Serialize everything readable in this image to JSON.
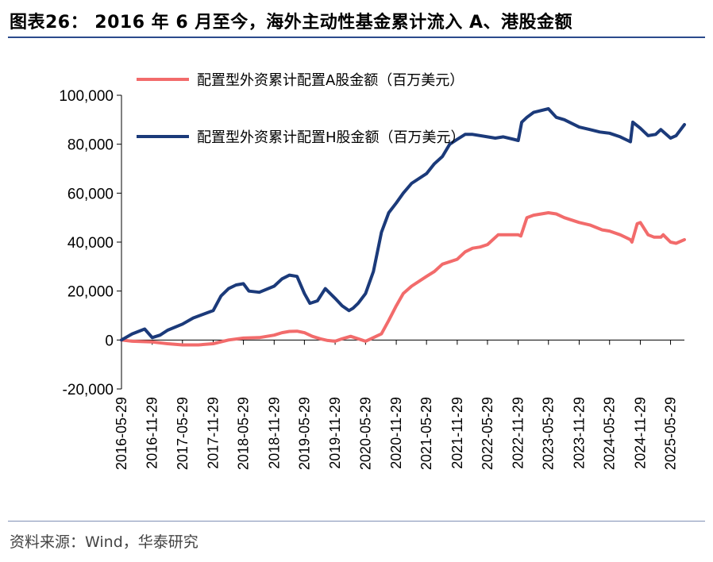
{
  "header": {
    "title": "图表26： 2016 年 6 月至今，海外主动性基金累计流入 A、港股金额"
  },
  "footer": {
    "source": "资料来源：Wind，华泰研究"
  },
  "chart_data": {
    "type": "line",
    "title": "",
    "xlabel": "",
    "ylabel": "",
    "ylim": [
      -20000,
      100000
    ],
    "yticks": [
      "-20,000",
      "0",
      "20,000",
      "40,000",
      "60,000",
      "80,000",
      "100,000"
    ],
    "ytick_values": [
      -20000,
      0,
      20000,
      40000,
      60000,
      80000,
      100000
    ],
    "xlim": [
      "2016-05-29",
      "2025-08-20"
    ],
    "xticks": [
      "2016-05-29",
      "2016-11-29",
      "2017-05-29",
      "2017-11-29",
      "2018-05-29",
      "2018-11-29",
      "2019-05-29",
      "2019-11-29",
      "2020-05-29",
      "2020-11-29",
      "2021-05-29",
      "2021-11-29",
      "2022-05-29",
      "2022-11-29",
      "2023-05-29",
      "2023-11-29",
      "2024-05-29",
      "2024-11-29",
      "2025-05-29"
    ],
    "grid": false,
    "legend_position": "top-left",
    "series": [
      {
        "name": "配置型外资累计配置A股金额（百万美元）",
        "color": "#f26b6b",
        "x": [
          "2016-05-29",
          "2016-08-01",
          "2016-11-29",
          "2017-03-01",
          "2017-05-29",
          "2017-09-01",
          "2017-11-29",
          "2018-03-01",
          "2018-05-29",
          "2018-09-01",
          "2018-11-29",
          "2019-01-15",
          "2019-03-01",
          "2019-04-15",
          "2019-05-29",
          "2019-07-15",
          "2019-09-01",
          "2019-10-15",
          "2019-11-29",
          "2020-01-10",
          "2020-03-01",
          "2020-04-15",
          "2020-05-29",
          "2020-07-15",
          "2020-09-01",
          "2020-10-15",
          "2020-11-29",
          "2021-01-10",
          "2021-03-01",
          "2021-05-29",
          "2021-07-15",
          "2021-09-01",
          "2021-11-29",
          "2022-01-15",
          "2022-03-01",
          "2022-04-15",
          "2022-05-29",
          "2022-08-01",
          "2022-11-29",
          "2022-12-15",
          "2023-01-20",
          "2023-03-01",
          "2023-05-29",
          "2023-07-15",
          "2023-09-01",
          "2023-11-29",
          "2024-02-01",
          "2024-04-15",
          "2024-05-29",
          "2024-08-01",
          "2024-10-01",
          "2024-10-10",
          "2024-11-10",
          "2024-11-29",
          "2025-01-15",
          "2025-02-20",
          "2025-04-01",
          "2025-04-15",
          "2025-05-29",
          "2025-07-01",
          "2025-08-20"
        ],
        "y": [
          0,
          -500,
          -800,
          -1500,
          -2000,
          -2000,
          -1500,
          0,
          800,
          1000,
          2000,
          3000,
          3500,
          3600,
          3000,
          1500,
          500,
          -200,
          -500,
          500,
          1500,
          500,
          -500,
          1000,
          2500,
          8000,
          14000,
          19000,
          22000,
          26000,
          28000,
          31000,
          33000,
          36000,
          37500,
          38000,
          39000,
          43000,
          43000,
          42500,
          50000,
          51000,
          52000,
          51500,
          50000,
          48000,
          47000,
          45000,
          44500,
          43000,
          41000,
          40000,
          47500,
          48000,
          43000,
          42000,
          42000,
          43000,
          40000,
          39500,
          41000
        ]
      },
      {
        "name": "配置型外资累计配置H股金额（百万美元）",
        "color": "#1b3a7a",
        "x": [
          "2016-05-29",
          "2016-08-01",
          "2016-10-15",
          "2016-11-29",
          "2017-01-15",
          "2017-03-01",
          "2017-05-29",
          "2017-08-01",
          "2017-11-29",
          "2018-01-15",
          "2018-03-01",
          "2018-04-15",
          "2018-05-29",
          "2018-07-01",
          "2018-09-01",
          "2018-11-29",
          "2019-01-15",
          "2019-03-01",
          "2019-04-15",
          "2019-05-29",
          "2019-07-01",
          "2019-08-15",
          "2019-10-01",
          "2019-11-29",
          "2020-01-10",
          "2020-02-20",
          "2020-03-15",
          "2020-04-15",
          "2020-05-29",
          "2020-07-15",
          "2020-09-01",
          "2020-10-15",
          "2020-11-29",
          "2021-01-10",
          "2021-03-01",
          "2021-05-29",
          "2021-07-15",
          "2021-09-01",
          "2021-10-15",
          "2021-11-29",
          "2022-01-15",
          "2022-03-01",
          "2022-05-29",
          "2022-07-15",
          "2022-09-01",
          "2022-11-01",
          "2022-11-29",
          "2022-12-20",
          "2023-01-20",
          "2023-03-01",
          "2023-05-29",
          "2023-07-15",
          "2023-09-01",
          "2023-11-29",
          "2024-02-01",
          "2024-04-01",
          "2024-05-29",
          "2024-08-01",
          "2024-09-15",
          "2024-10-01",
          "2024-10-15",
          "2024-11-29",
          "2025-01-15",
          "2025-03-01",
          "2025-04-01",
          "2025-05-29",
          "2025-07-01",
          "2025-08-20"
        ],
        "y": [
          0,
          2500,
          4500,
          1000,
          2000,
          4000,
          6500,
          9000,
          12000,
          18000,
          21000,
          22500,
          23000,
          20000,
          19500,
          22000,
          25000,
          26500,
          26000,
          19000,
          15000,
          16000,
          21000,
          17000,
          14000,
          12000,
          13000,
          15000,
          19000,
          28000,
          44000,
          52000,
          56000,
          60000,
          64000,
          68000,
          72000,
          75000,
          80000,
          82000,
          84000,
          84000,
          83000,
          82500,
          83000,
          82000,
          81500,
          89000,
          91000,
          93000,
          94500,
          91000,
          90000,
          87000,
          86000,
          85000,
          84500,
          83000,
          81500,
          81000,
          89000,
          86500,
          83500,
          84000,
          86000,
          82500,
          83500,
          88000
        ]
      }
    ]
  }
}
